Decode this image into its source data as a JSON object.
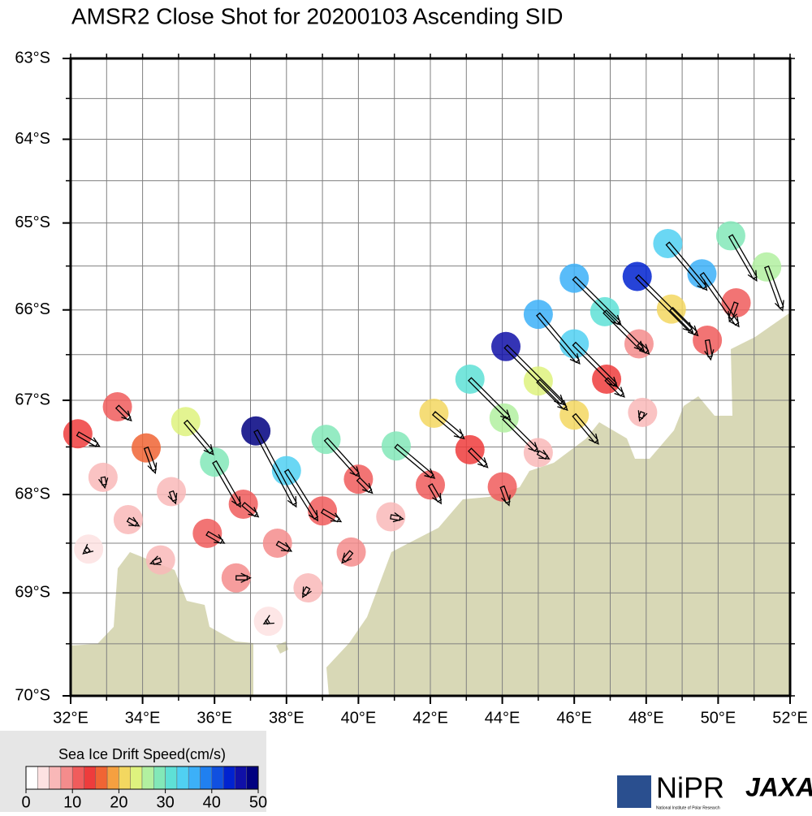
{
  "chart_data": {
    "type": "vector-map",
    "title": "AMSR2 Close Shot for 20200103 Ascending SID",
    "projection": "mercator",
    "xlim": [
      32,
      52
    ],
    "ylim": [
      -70,
      -63
    ],
    "xticks": [
      {
        "value": 32,
        "label": "32°E"
      },
      {
        "value": 34,
        "label": "34°E"
      },
      {
        "value": 36,
        "label": "36°E"
      },
      {
        "value": 38,
        "label": "38°E"
      },
      {
        "value": 40,
        "label": "40°E"
      },
      {
        "value": 42,
        "label": "42°E"
      },
      {
        "value": 44,
        "label": "44°E"
      },
      {
        "value": 46,
        "label": "46°E"
      },
      {
        "value": 48,
        "label": "48°E"
      },
      {
        "value": 50,
        "label": "50°E"
      },
      {
        "value": 52,
        "label": "52°E"
      }
    ],
    "yticks": [
      {
        "value": -63,
        "label": "63°S"
      },
      {
        "value": -64,
        "label": "64°S"
      },
      {
        "value": -65,
        "label": "65°S"
      },
      {
        "value": -66,
        "label": "66°S"
      },
      {
        "value": -67,
        "label": "67°S"
      },
      {
        "value": -68,
        "label": "68°S"
      },
      {
        "value": -69,
        "label": "69°S"
      },
      {
        "value": -70,
        "label": "70°S"
      }
    ],
    "xgrid": [
      32,
      33,
      34,
      35,
      36,
      37,
      38,
      39,
      40,
      41,
      42,
      43,
      44,
      45,
      46,
      47,
      48,
      49,
      50,
      51,
      52
    ],
    "ygrid": [
      -63,
      -63.5,
      -64,
      -64.5,
      -65,
      -65.5,
      -66,
      -66.5,
      -67,
      -67.5,
      -68,
      -68.5,
      -69,
      -69.5,
      -70
    ],
    "x": [
      32.2,
      33.3,
      34.1,
      35.2,
      36.0,
      37.15,
      38.0,
      39.1,
      40.0,
      41.05,
      42.0,
      42.1,
      43.1,
      43.1,
      44.0,
      44.05,
      44.1,
      45.0,
      45.0,
      45.0,
      46.0,
      46.0,
      46.0,
      46.85,
      46.9,
      47.75,
      47.8,
      47.9,
      48.6,
      48.7,
      49.55,
      49.7,
      50.35,
      50.5,
      51.35,
      32.9,
      32.5,
      33.6,
      34.8,
      34.5,
      35.8,
      36.8,
      36.6,
      37.75,
      37.5,
      39.0,
      38.6,
      39.8,
      40.9
    ],
    "y": [
      -67.36,
      -67.07,
      -67.51,
      -67.23,
      -67.66,
      -67.33,
      -67.75,
      -67.42,
      -67.84,
      -67.49,
      -67.9,
      -67.14,
      -67.53,
      -66.77,
      -67.92,
      -67.19,
      -66.41,
      -67.56,
      -66.79,
      -66.05,
      -65.64,
      -66.38,
      -67.16,
      -66.02,
      -66.77,
      -65.62,
      -66.38,
      -67.13,
      -65.24,
      -65.99,
      -65.59,
      -66.34,
      -65.15,
      -65.92,
      -65.51,
      -67.82,
      -68.56,
      -68.26,
      -67.97,
      -68.67,
      -68.4,
      -68.1,
      -68.85,
      -68.5,
      -69.28,
      -68.17,
      -68.95,
      -68.59,
      -68.23
    ],
    "values": [
      14,
      11,
      15,
      24,
      29,
      48,
      33,
      28,
      11,
      28,
      12,
      22,
      14,
      32,
      11,
      27,
      46,
      7,
      23,
      36,
      37,
      34,
      21,
      31,
      14,
      44,
      8,
      5,
      34,
      21,
      36,
      11,
      29,
      11,
      26,
      6,
      4,
      7,
      7,
      6,
      11,
      11,
      8,
      9,
      3,
      12,
      6,
      8,
      7
    ],
    "directions": [
      120,
      135,
      160,
      140,
      150,
      152,
      148,
      138,
      135,
      130,
      150,
      130,
      135,
      135,
      160,
      135,
      135,
      120,
      135,
      140,
      135,
      135,
      140,
      135,
      135,
      135,
      135,
      200,
      140,
      135,
      145,
      170,
      150,
      200,
      160,
      170,
      230,
      120,
      160,
      250,
      120,
      130,
      90,
      120,
      240,
      120,
      210,
      220,
      100
    ],
    "colorbar": {
      "title": "Sea Ice Drift Speed(cm/s)",
      "clim": [
        0,
        50
      ],
      "ticks": [
        0,
        10,
        20,
        30,
        40,
        50
      ],
      "colors": [
        "#ffffff",
        "#fde2e2",
        "#f9b8b8",
        "#f48c8c",
        "#f05c5c",
        "#ee3c3c",
        "#f06434",
        "#f5a040",
        "#f3d760",
        "#def27e",
        "#b2f0a0",
        "#82e8b8",
        "#5ee0d6",
        "#50d0f2",
        "#3cb0f8",
        "#2080f0",
        "#1050e0",
        "#0022d0",
        "#1010a8",
        "#000080"
      ]
    }
  },
  "logos": {
    "nipr": "NiPR",
    "nipr_caption": "National Institute of Polar Research",
    "jaxa": "JAXA"
  }
}
